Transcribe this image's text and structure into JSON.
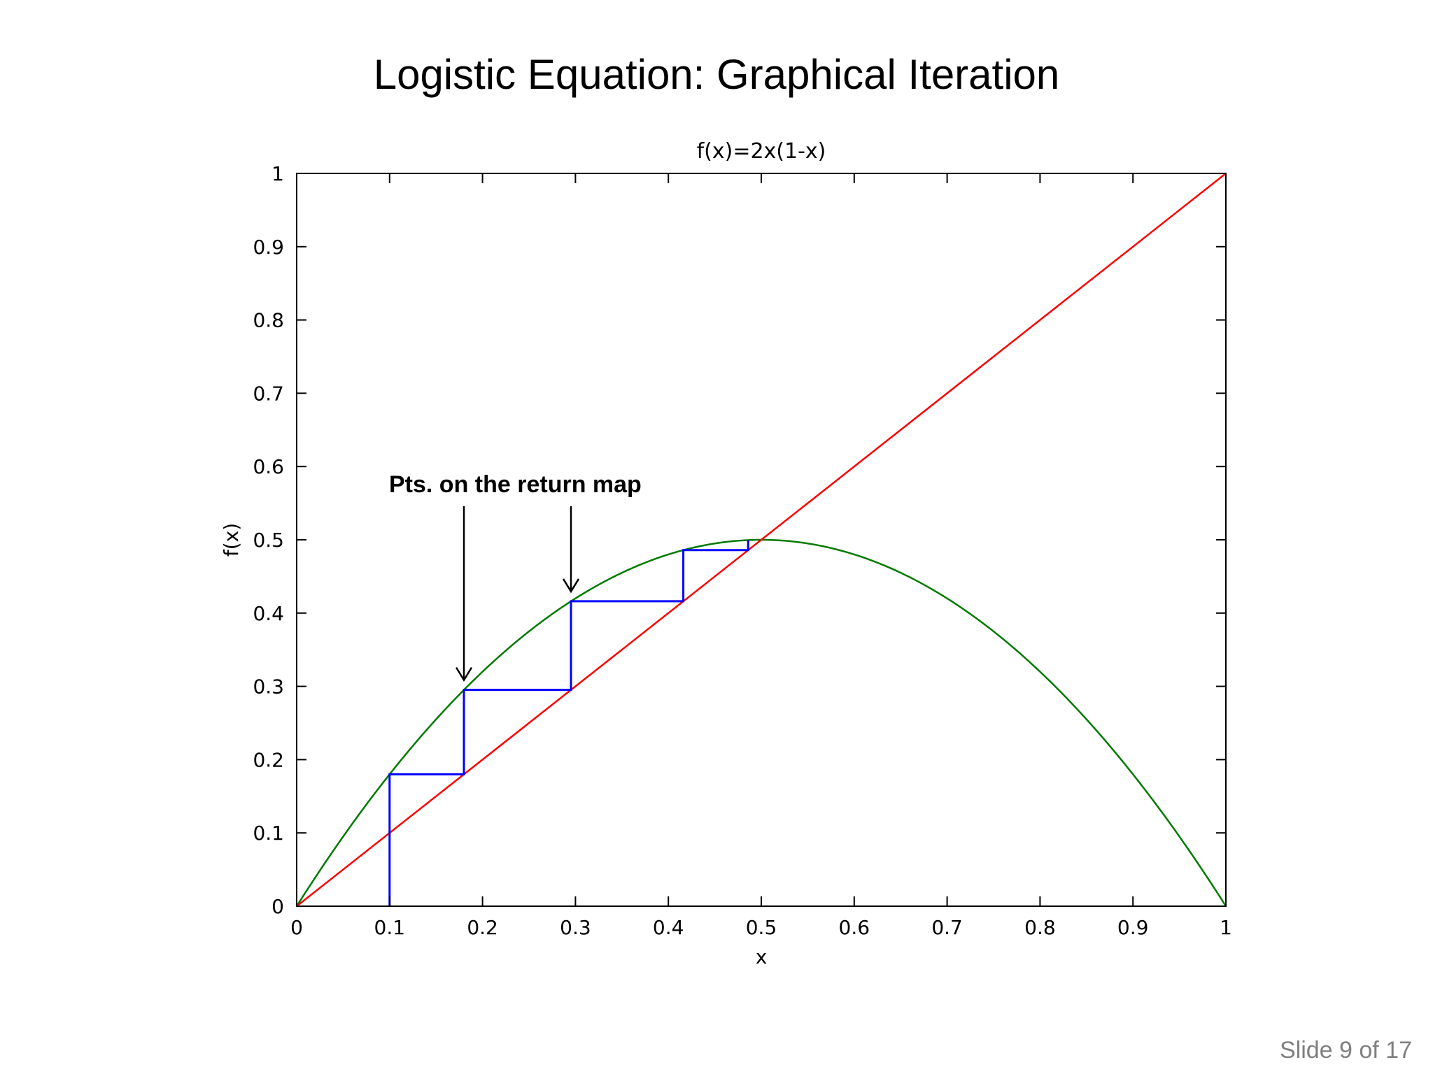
{
  "slide": {
    "title": "Logistic Equation: Graphical Iteration",
    "footer": "Slide 9 of 17"
  },
  "chart_data": {
    "type": "line",
    "title": "f(x)=2x(1-x)",
    "xlabel": "x",
    "ylabel": "f(x)",
    "xlim": [
      0,
      1
    ],
    "ylim": [
      0,
      1
    ],
    "x_ticks": [
      "0",
      "0.1",
      "0.2",
      "0.3",
      "0.4",
      "0.5",
      "0.6",
      "0.7",
      "0.8",
      "0.9",
      "1"
    ],
    "y_ticks": [
      "0",
      "0.1",
      "0.2",
      "0.3",
      "0.4",
      "0.5",
      "0.6",
      "0.7",
      "0.8",
      "0.9",
      "1"
    ],
    "grid": false,
    "series": [
      {
        "color": "#007a00",
        "x": [
          0,
          0.05,
          0.1,
          0.15,
          0.2,
          0.25,
          0.3,
          0.35,
          0.4,
          0.45,
          0.5,
          0.55,
          0.6,
          0.65,
          0.7,
          0.75,
          0.8,
          0.85,
          0.9,
          0.95,
          1
        ],
        "y": [
          0,
          0.095,
          0.18,
          0.255,
          0.32,
          0.375,
          0.42,
          0.455,
          0.48,
          0.495,
          0.5,
          0.495,
          0.48,
          0.455,
          0.42,
          0.375,
          0.32,
          0.255,
          0.18,
          0.095,
          0
        ]
      },
      {
        "color": "#ff0000",
        "x": [
          0,
          1
        ],
        "y": [
          0,
          1
        ]
      },
      {
        "color": "#0000ff",
        "x": [
          0.1,
          0.1,
          0.18,
          0.18,
          0.2952,
          0.2952,
          0.4161,
          0.4161,
          0.4859,
          0.4859
        ],
        "y": [
          0,
          0.18,
          0.18,
          0.2952,
          0.2952,
          0.4161,
          0.4161,
          0.4859,
          0.4859,
          0.4996
        ]
      }
    ],
    "annotations": [
      {
        "text": "Pts. on the return map",
        "arrows": [
          {
            "x": 0.18,
            "y": 0.2952
          },
          {
            "x": 0.2952,
            "y": 0.4161
          }
        ]
      }
    ]
  }
}
